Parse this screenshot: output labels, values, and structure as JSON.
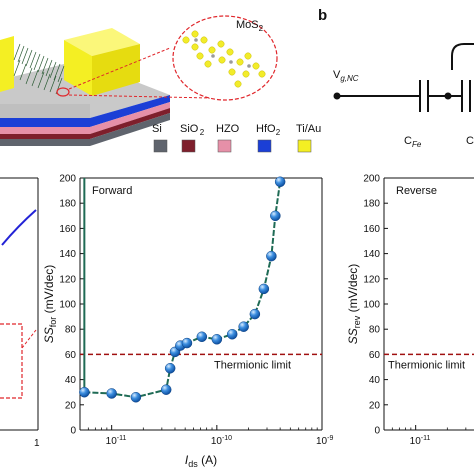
{
  "panel_b_label": "b",
  "top_schematic": {
    "mos2_label": "MoS",
    "mos2_sub": "2",
    "legend": [
      {
        "label": "Si",
        "sub": "",
        "color": "#5f646d"
      },
      {
        "label": "SiO",
        "sub": "2",
        "color": "#7e1f2c"
      },
      {
        "label": "HZO",
        "sub": "",
        "color": "#e690a8"
      },
      {
        "label": "HfO",
        "sub": "2",
        "color": "#1b3fd6"
      },
      {
        "label": "Ti/Au",
        "sub": "",
        "color": "#f4ef23"
      }
    ]
  },
  "circuit": {
    "vg_label": "V",
    "vg_sub": "g,NC",
    "cfe_label": "C",
    "cfe_sub": "Fe",
    "c2_label": "C"
  },
  "left_partial": {
    "x_tick_right": "1"
  },
  "chart_data": [
    {
      "type": "scatter",
      "annotation": "Forward",
      "xlabel": "I",
      "xlabel_sub": "ds",
      "xlabel_unit": " (A)",
      "ylabel": "SS",
      "ylabel_sub": "for",
      "ylabel_unit": " (mV/dec)",
      "x_scale": "log",
      "xlim": [
        5e-12,
        1e-09
      ],
      "ylim": [
        0,
        200
      ],
      "x_ticks": [
        {
          "label": "10",
          "exp": "-11",
          "value": 1e-11
        },
        {
          "label": "10",
          "exp": "-10",
          "value": 1e-10
        },
        {
          "label": "10",
          "exp": "-9",
          "value": 1e-09
        }
      ],
      "y_ticks": [
        0,
        20,
        40,
        60,
        80,
        100,
        120,
        140,
        160,
        180,
        200
      ],
      "reference_line": {
        "y": 60,
        "label": "Thermionic limit"
      },
      "steep_line_x": 5.5e-12,
      "points": [
        {
          "x": 5.5e-12,
          "y": 30
        },
        {
          "x": 1e-11,
          "y": 29
        },
        {
          "x": 1.7e-11,
          "y": 26
        },
        {
          "x": 3.3e-11,
          "y": 32
        },
        {
          "x": 3.6e-11,
          "y": 49
        },
        {
          "x": 4e-11,
          "y": 62
        },
        {
          "x": 4.5e-11,
          "y": 67
        },
        {
          "x": 5.2e-11,
          "y": 69
        },
        {
          "x": 7.2e-11,
          "y": 74
        },
        {
          "x": 1e-10,
          "y": 72
        },
        {
          "x": 1.4e-10,
          "y": 76
        },
        {
          "x": 1.8e-10,
          "y": 82
        },
        {
          "x": 2.3e-10,
          "y": 92
        },
        {
          "x": 2.8e-10,
          "y": 112
        },
        {
          "x": 3.3e-10,
          "y": 138
        },
        {
          "x": 3.6e-10,
          "y": 170
        },
        {
          "x": 4e-10,
          "y": 197
        }
      ]
    },
    {
      "type": "scatter",
      "annotation": "Reverse",
      "ylabel": "SS",
      "ylabel_sub": "rev",
      "ylabel_unit": " (mV/dec)",
      "x_scale": "log",
      "xlim": [
        5e-12,
        1e-09
      ],
      "ylim": [
        0,
        200
      ],
      "x_ticks": [
        {
          "label": "10",
          "exp": "-11",
          "value": 1e-11
        }
      ],
      "y_ticks": [
        0,
        20,
        40,
        60,
        80,
        100,
        120,
        140,
        160,
        180,
        200
      ],
      "reference_line": {
        "y": 60,
        "label": "Thermionic limit"
      },
      "points": []
    }
  ]
}
